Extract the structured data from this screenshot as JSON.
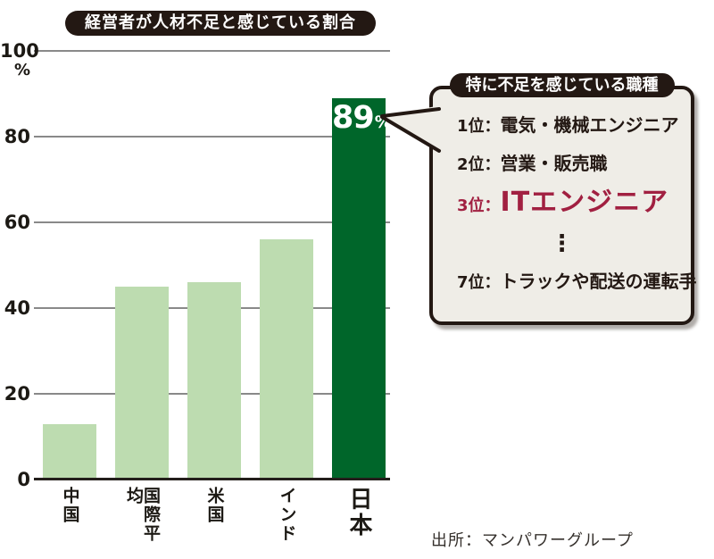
{
  "title": "経営者が人材不足と感じている割合",
  "source": "出所：マンパワーグループ",
  "chart_data": {
    "type": "bar",
    "title": "経営者が人材不足と感じている割合",
    "categories": [
      "中国",
      "国際平均",
      "米国",
      "インド",
      "日本"
    ],
    "values": [
      13,
      45,
      46,
      56,
      89
    ],
    "unit": "%",
    "ytick_labels": [
      "0",
      "20",
      "40",
      "60",
      "80",
      "100"
    ],
    "ytick_values": [
      0,
      20,
      40,
      60,
      80,
      100
    ],
    "ylim": [
      0,
      100
    ],
    "grid": true,
    "legend": false,
    "highlight": {
      "index": 4,
      "label_num": "89",
      "label_unit": "%"
    },
    "bar_color": "#bddcb0",
    "highlight_color": "#00662a"
  },
  "callout": {
    "header": "特に不足を感じている職種",
    "items": [
      {
        "rank": "1位：",
        "label": "電気・機械エンジニア",
        "style": "normal"
      },
      {
        "rank": "2位：",
        "label": "営業・販売職",
        "style": "normal"
      },
      {
        "rank": "3位：",
        "label": "ITエンジニア",
        "style": "highlight"
      },
      {
        "rank": "",
        "label": "⋮",
        "style": "ellipsis"
      },
      {
        "rank": "7位：",
        "label": "トラックや配送の運転手",
        "style": "normal"
      }
    ]
  },
  "colors": {
    "badge_bg": "#231813",
    "badge_text": "#ffffff",
    "bar_light": "#bddcb0",
    "bar_dark": "#00662a",
    "highlight_text": "#a12041",
    "box_bg": "#efede7",
    "gridline": "#898989",
    "axis": "#241f1c"
  }
}
